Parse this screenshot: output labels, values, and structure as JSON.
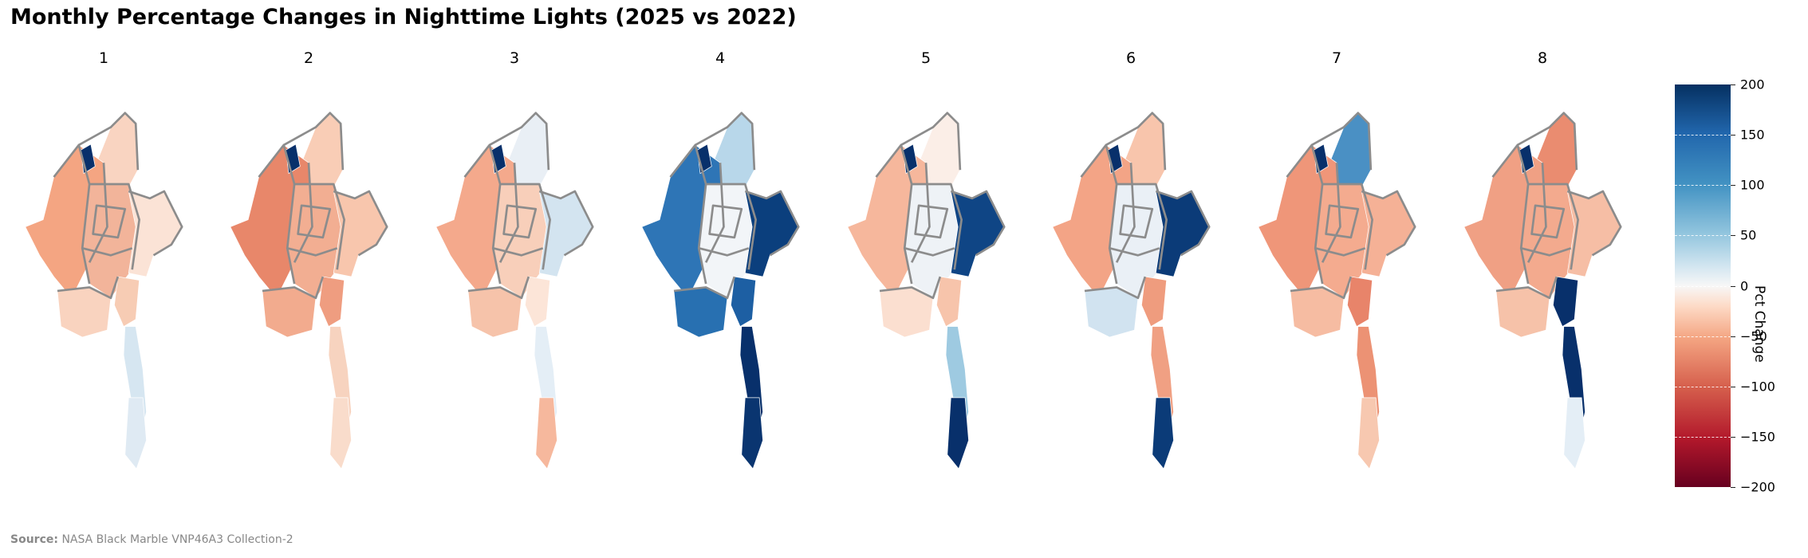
{
  "title": "Monthly Percentage Changes in Nighttime Lights (2025 vs 2022)",
  "panels": [
    {
      "label": "1",
      "palette": {
        "north": "#f9d4c1",
        "west": "#f4a582",
        "center": "#f2b49a",
        "east": "#fbe3d6",
        "southEast": "#f7ccb4",
        "delta": "#f9d3bf",
        "south": "#d6e6f1",
        "tip": "#dfeaf3",
        "accent": "#08306b"
      }
    },
    {
      "label": "2",
      "palette": {
        "north": "#f9cdb6",
        "west": "#e8876a",
        "center": "#f2ae92",
        "east": "#f8c6ad",
        "southEast": "#ef9d80",
        "delta": "#f2ab8e",
        "south": "#f7d3bf",
        "tip": "#f9dccb",
        "accent": "#08306b"
      }
    },
    {
      "label": "3",
      "palette": {
        "north": "#e9eff5",
        "west": "#f4a98c",
        "center": "#f8cfba",
        "east": "#d3e4f0",
        "southEast": "#fce5d8",
        "delta": "#f6c3aa",
        "south": "#e4eef6",
        "tip": "#f6b89d",
        "accent": "#08306b"
      }
    },
    {
      "label": "4",
      "palette": {
        "north": "#b8d7ea",
        "west": "#2e75b6",
        "center": "#f2f5f8",
        "east": "#0b3f7d",
        "southEast": "#1d5fa3",
        "delta": "#2870b1",
        "south": "#08306b",
        "tip": "#0a3570",
        "accent": "#08306b"
      }
    },
    {
      "label": "5",
      "palette": {
        "north": "#fbeee7",
        "west": "#f6b79c",
        "center": "#eef2f6",
        "east": "#0f4585",
        "southEast": "#f7c4ab",
        "delta": "#fbdfd0",
        "south": "#9ecae1",
        "tip": "#08306b",
        "accent": "#08306b"
      }
    },
    {
      "label": "6",
      "palette": {
        "north": "#f8c5ac",
        "west": "#f3a486",
        "center": "#eaf0f6",
        "east": "#0b3b78",
        "southEast": "#ef9c7e",
        "delta": "#d1e3f0",
        "south": "#f0a083",
        "tip": "#0b3b78",
        "accent": "#08306b"
      }
    },
    {
      "label": "7",
      "palette": {
        "north": "#4a90c4",
        "west": "#ef9679",
        "center": "#f4ab8f",
        "east": "#f5b196",
        "southEast": "#e8846a",
        "delta": "#f6bca2",
        "south": "#ec9274",
        "tip": "#f7c8b0",
        "accent": "#08306b"
      }
    },
    {
      "label": "8",
      "palette": {
        "north": "#ea8c70",
        "west": "#f0a084",
        "center": "#f3aa8e",
        "east": "#f6bea5",
        "southEast": "#08306b",
        "delta": "#f6c2a9",
        "south": "#08306b",
        "tip": "#e4eef6",
        "accent": "#08306b"
      }
    }
  ],
  "colorbar": {
    "title": "Pct Change",
    "ticks": [
      "200",
      "150",
      "100",
      "50",
      "0",
      "−50",
      "−100",
      "−150",
      "−200"
    ],
    "range": [
      -200,
      200
    ],
    "colormap": "RdBu"
  },
  "source": {
    "label": "Source",
    "colon": ":",
    "text": "NASA Black Marble VNP46A3 Collection-2"
  }
}
